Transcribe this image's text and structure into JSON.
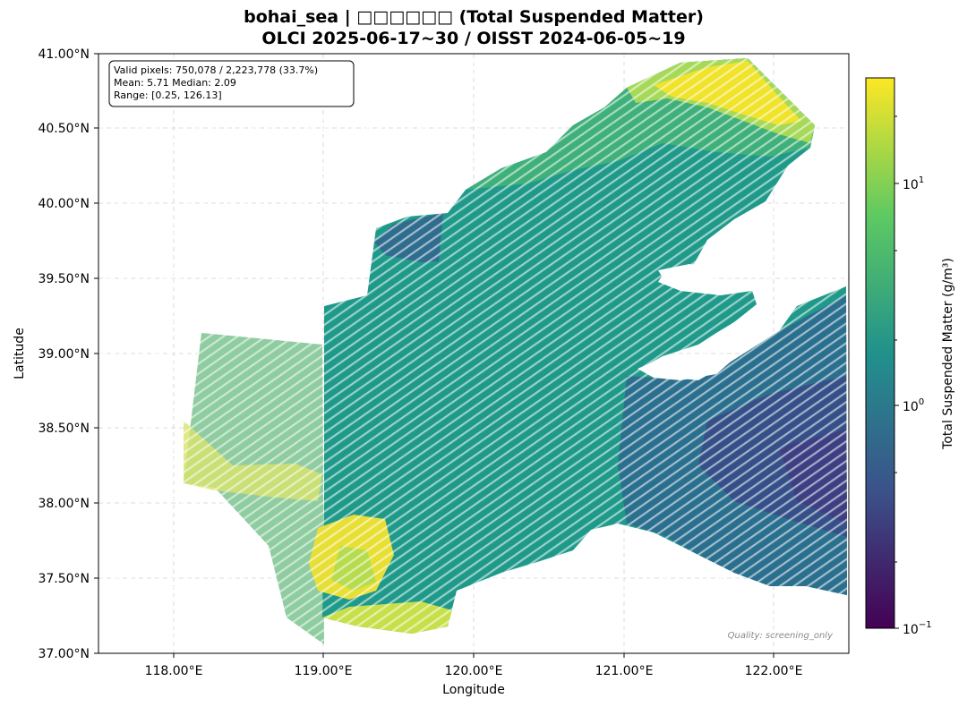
{
  "title_line1": "bohai_sea | □□□□□□ (Total Suspended Matter)",
  "title_line2": "OLCI 2025-06-17~30 / OISST 2024-06-05~19",
  "xlabel": "Longitude",
  "ylabel": "Latitude",
  "x_ticks": [
    "118.00°E",
    "119.00°E",
    "120.00°E",
    "121.00°E",
    "122.00°E"
  ],
  "y_ticks": [
    "41.00°N",
    "40.50°N",
    "40.00°N",
    "39.50°N",
    "39.00°N",
    "38.50°N",
    "38.00°N",
    "37.50°N",
    "37.00°N"
  ],
  "stats": {
    "line1": "Valid pixels: 750,078 / 2,223,778 (33.7%)",
    "line2": "Mean: 5.71  Median: 2.09",
    "line3": "Range: [0.25, 126.13]"
  },
  "quality_note": "Quality: screening_only",
  "colorbar": {
    "label": "Total Suspended Matter (g/m³)",
    "ticks": [
      {
        "base": "10",
        "exp": "1",
        "value": 10
      },
      {
        "base": "10",
        "exp": "0",
        "value": 1
      },
      {
        "base": "10",
        "exp": "−1",
        "value": 0.1
      }
    ],
    "scale": "log",
    "range": [
      0.1,
      30
    ],
    "colormap": "viridis",
    "colors": [
      "#440154",
      "#3b528b",
      "#21918c",
      "#5ec962",
      "#fde725"
    ]
  },
  "chart_data": {
    "type": "heatmap",
    "title": "bohai_sea | □□□□□□ (Total Suspended Matter)",
    "xlabel": "Longitude",
    "ylabel": "Latitude",
    "xlim": [
      117.5,
      122.5
    ],
    "ylim": [
      37.0,
      41.0
    ],
    "grid": true,
    "value_label": "Total Suspended Matter (g/m³)",
    "valid_pixels": 750078,
    "total_pixels": 2223778,
    "valid_percent": 33.7,
    "mean": 5.71,
    "median": 2.09,
    "min": 0.25,
    "max": 126.13
  }
}
